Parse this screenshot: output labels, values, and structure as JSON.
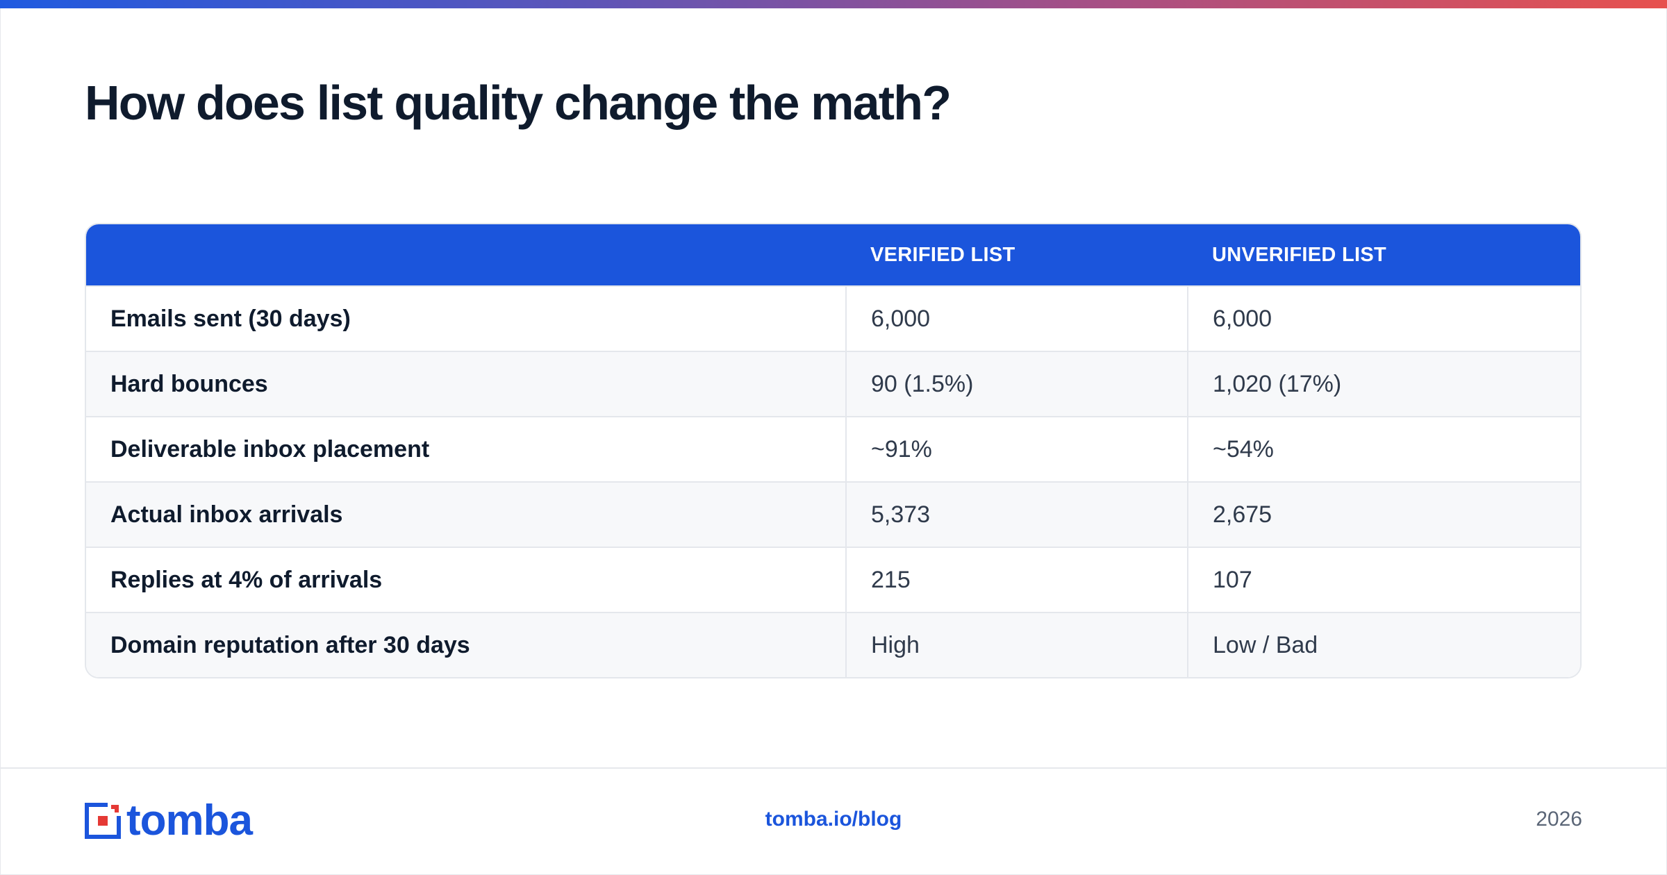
{
  "header": {
    "title": "How does list quality change the math?"
  },
  "colors": {
    "accent": "#1b55dc",
    "gradient_start": "#1f5ae0",
    "gradient_end": "#e7514e",
    "logo_red": "#e53935"
  },
  "table": {
    "columns": [
      "",
      "VERIFIED LIST",
      "UNVERIFIED LIST"
    ],
    "rows": [
      [
        "Emails sent (30 days)",
        "6,000",
        "6,000"
      ],
      [
        "Hard bounces",
        "90 (1.5%)",
        "1,020 (17%)"
      ],
      [
        "Deliverable inbox placement",
        "~91%",
        "~54%"
      ],
      [
        "Actual inbox arrivals",
        "5,373",
        "2,675"
      ],
      [
        "Replies at 4% of arrivals",
        "215",
        "107"
      ],
      [
        "Domain reputation after 30 days",
        "High",
        "Low / Bad"
      ]
    ]
  },
  "footer": {
    "logo_text": "tomba",
    "link": "tomba.io/blog",
    "year": "2026"
  }
}
